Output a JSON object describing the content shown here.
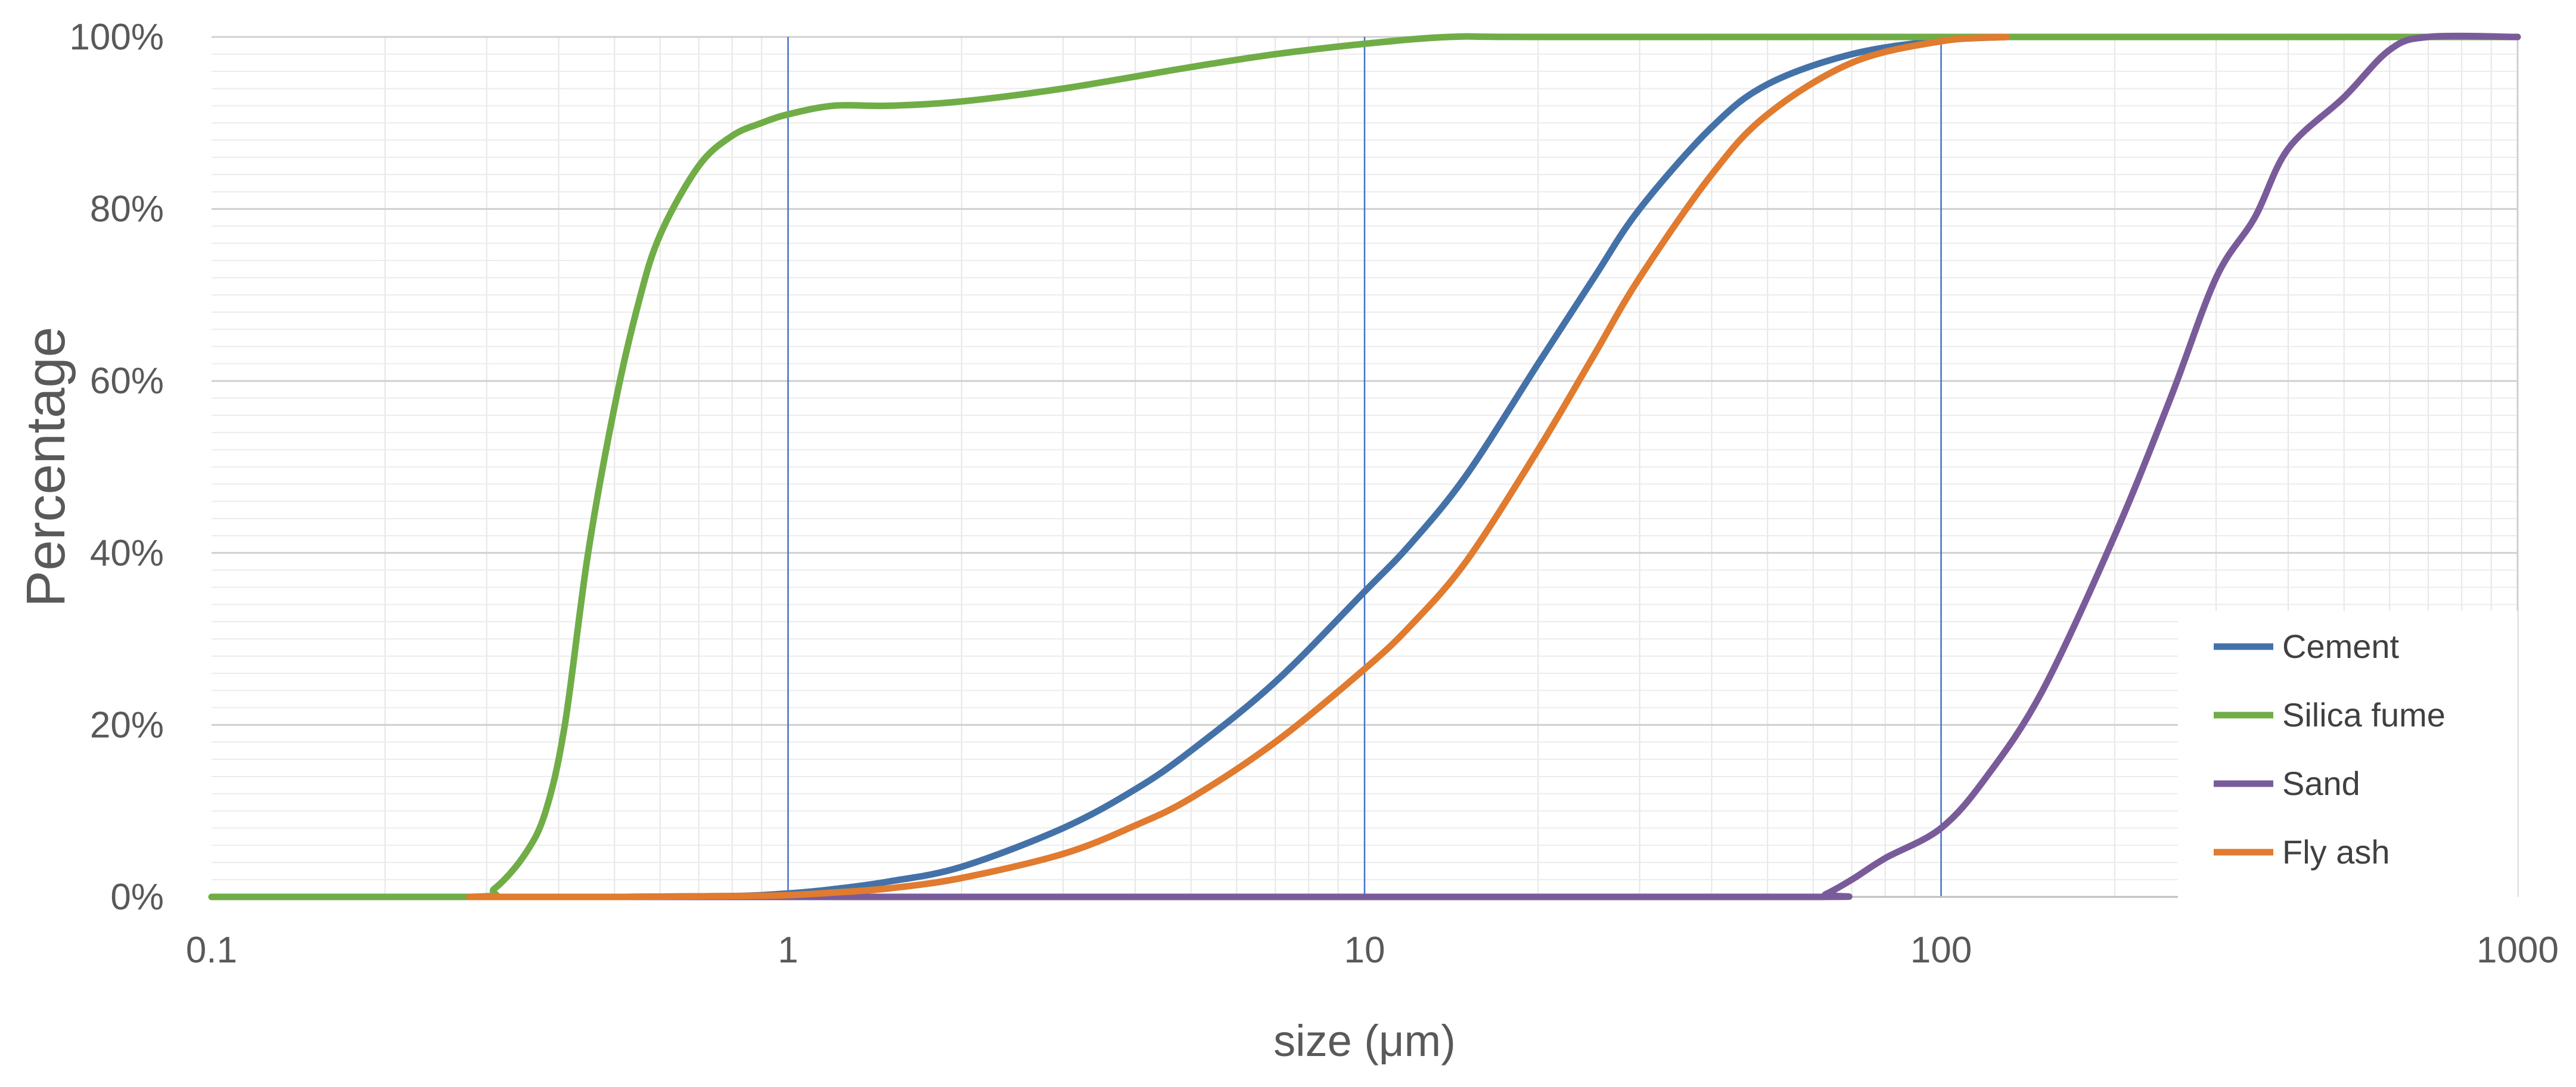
{
  "chart_data": {
    "type": "line",
    "xlabel": "size (μm)",
    "ylabel": "Percentage",
    "x_scale": "log",
    "xlim": [
      0.1,
      1000
    ],
    "ylim": [
      0,
      100
    ],
    "x_ticks": [
      0.1,
      1,
      10,
      100,
      1000
    ],
    "x_tick_labels": [
      "0.1",
      "1",
      "10",
      "100",
      "1000"
    ],
    "y_ticks": [
      0,
      20,
      40,
      60,
      80,
      100
    ],
    "y_tick_labels": [
      "0%",
      "20%",
      "40%",
      "60%",
      "80%",
      "100%"
    ],
    "grid": true,
    "legend_position": "bottom-right",
    "series": [
      {
        "name": "Cement",
        "color": "#4472a8",
        "x": [
          0.28,
          0.5,
          0.8,
          1,
          1.2,
          1.5,
          2,
          3,
          4,
          5,
          7,
          10,
          12,
          15,
          20,
          25,
          30,
          40,
          50,
          70,
          100,
          130
        ],
        "y": [
          0,
          0,
          0.1,
          0.4,
          0.9,
          1.8,
          3.5,
          8,
          12.5,
          17,
          25,
          35.5,
          41,
          49,
          62,
          72,
          80,
          89.5,
          94.5,
          98,
          99.6,
          100
        ]
      },
      {
        "name": "Silica fume",
        "color": "#70ad47",
        "x": [
          0.1,
          0.28,
          0.31,
          0.35,
          0.38,
          0.41,
          0.45,
          0.5,
          0.55,
          0.6,
          0.7,
          0.8,
          0.9,
          1,
          1.2,
          1.5,
          2,
          3,
          5,
          7,
          10,
          14,
          20,
          100,
          1000
        ],
        "y": [
          0,
          0,
          1,
          5,
          10,
          20,
          40,
          57,
          69,
          77,
          85,
          88.5,
          90,
          91,
          92,
          92,
          92.5,
          94,
          96.5,
          98,
          99.2,
          100,
          100,
          100,
          100
        ]
      },
      {
        "name": "Sand",
        "color": "#7a5b9a",
        "x": [
          0.28,
          10,
          60,
          63,
          70,
          80,
          100,
          120,
          150,
          200,
          250,
          300,
          350,
          400,
          500,
          600,
          700,
          1000
        ],
        "y": [
          0,
          0,
          0,
          0.3,
          2,
          4.5,
          8,
          14,
          24,
          42,
          58,
          72,
          79,
          87,
          93,
          98.5,
          100,
          100
        ]
      },
      {
        "name": "Fly ash",
        "color": "#e07b2f",
        "x": [
          0.28,
          0.5,
          0.8,
          1,
          1.2,
          1.5,
          2,
          3,
          4,
          5,
          7,
          10,
          12,
          15,
          20,
          25,
          30,
          40,
          50,
          70,
          100,
          130
        ],
        "y": [
          0,
          0,
          0.1,
          0.2,
          0.5,
          1,
          2.2,
          5,
          8.3,
          11.5,
          18,
          26.5,
          31.5,
          39,
          52,
          63,
          72,
          84,
          91,
          97,
          99.5,
          100
        ]
      }
    ]
  }
}
